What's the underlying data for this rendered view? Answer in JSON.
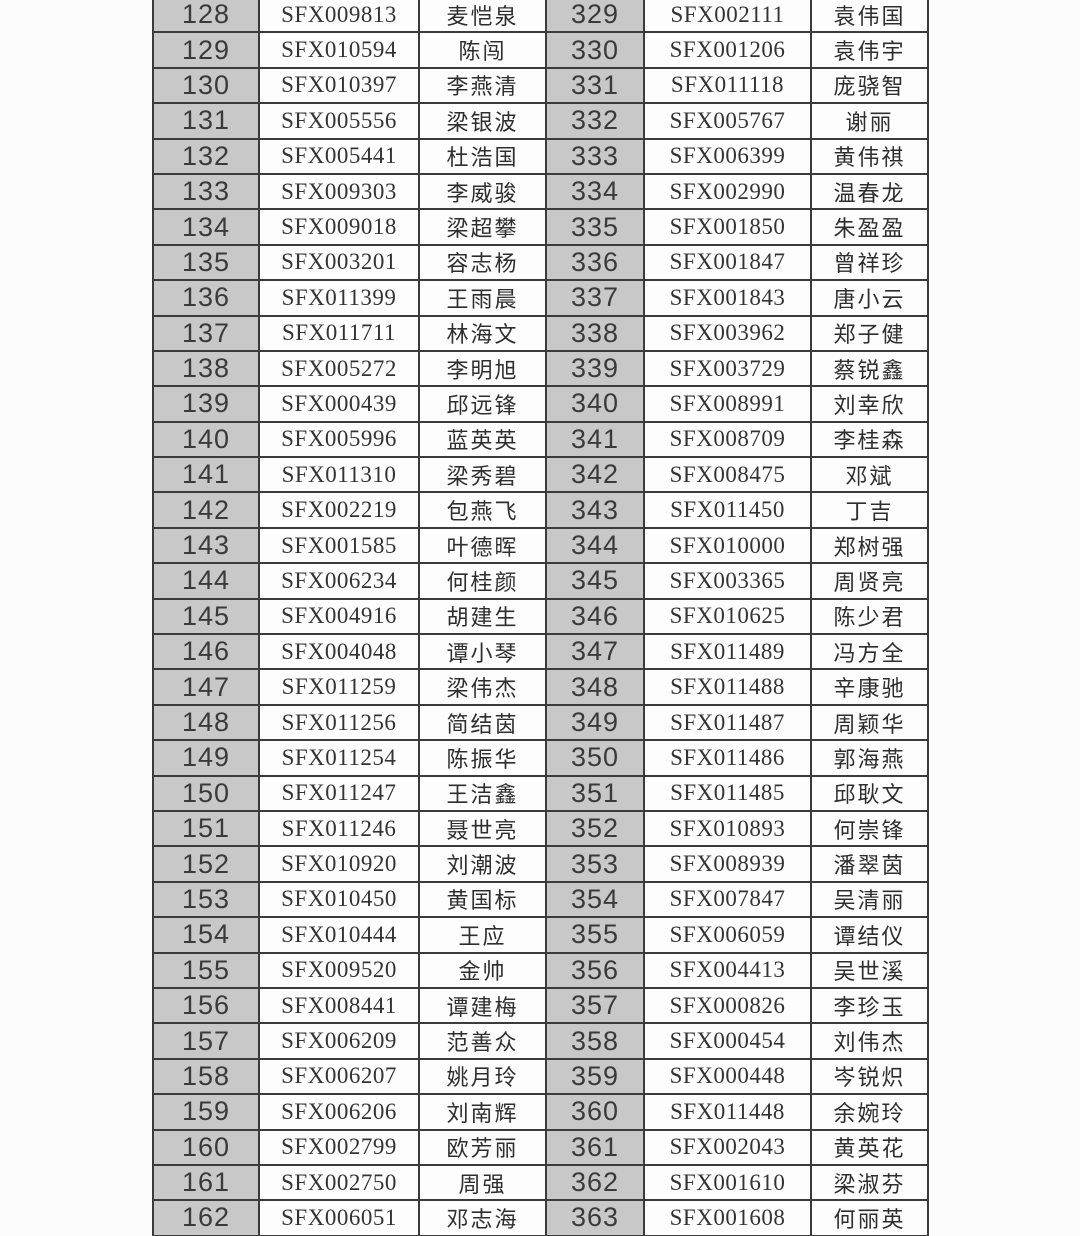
{
  "colors": {
    "page_bg": "#fcfcfc",
    "row_number_bg": "#c8c8c8",
    "cell_bg": "#fdfdfd",
    "border": "#3b3b3b",
    "text": "#333333"
  },
  "table": {
    "left_rows": [
      {
        "no": "128",
        "code": "SFX009813",
        "name": "麦恺泉"
      },
      {
        "no": "129",
        "code": "SFX010594",
        "name": "陈闯"
      },
      {
        "no": "130",
        "code": "SFX010397",
        "name": "李燕清"
      },
      {
        "no": "131",
        "code": "SFX005556",
        "name": "梁银波"
      },
      {
        "no": "132",
        "code": "SFX005441",
        "name": "杜浩国"
      },
      {
        "no": "133",
        "code": "SFX009303",
        "name": "李威骏"
      },
      {
        "no": "134",
        "code": "SFX009018",
        "name": "梁超攀"
      },
      {
        "no": "135",
        "code": "SFX003201",
        "name": "容志杨"
      },
      {
        "no": "136",
        "code": "SFX011399",
        "name": "王雨晨"
      },
      {
        "no": "137",
        "code": "SFX011711",
        "name": "林海文"
      },
      {
        "no": "138",
        "code": "SFX005272",
        "name": "李明旭"
      },
      {
        "no": "139",
        "code": "SFX000439",
        "name": "邱远锋"
      },
      {
        "no": "140",
        "code": "SFX005996",
        "name": "蓝英英"
      },
      {
        "no": "141",
        "code": "SFX011310",
        "name": "梁秀碧"
      },
      {
        "no": "142",
        "code": "SFX002219",
        "name": "包燕飞"
      },
      {
        "no": "143",
        "code": "SFX001585",
        "name": "叶德晖"
      },
      {
        "no": "144",
        "code": "SFX006234",
        "name": "何桂颜"
      },
      {
        "no": "145",
        "code": "SFX004916",
        "name": "胡建生"
      },
      {
        "no": "146",
        "code": "SFX004048",
        "name": "谭小琴"
      },
      {
        "no": "147",
        "code": "SFX011259",
        "name": "梁伟杰"
      },
      {
        "no": "148",
        "code": "SFX011256",
        "name": "简结茵"
      },
      {
        "no": "149",
        "code": "SFX011254",
        "name": "陈振华"
      },
      {
        "no": "150",
        "code": "SFX011247",
        "name": "王洁鑫"
      },
      {
        "no": "151",
        "code": "SFX011246",
        "name": "聂世亮"
      },
      {
        "no": "152",
        "code": "SFX010920",
        "name": "刘潮波"
      },
      {
        "no": "153",
        "code": "SFX010450",
        "name": "黄国标"
      },
      {
        "no": "154",
        "code": "SFX010444",
        "name": "王应"
      },
      {
        "no": "155",
        "code": "SFX009520",
        "name": "金帅"
      },
      {
        "no": "156",
        "code": "SFX008441",
        "name": "谭建梅"
      },
      {
        "no": "157",
        "code": "SFX006209",
        "name": "范善众"
      },
      {
        "no": "158",
        "code": "SFX006207",
        "name": "姚月玲"
      },
      {
        "no": "159",
        "code": "SFX006206",
        "name": "刘南辉"
      },
      {
        "no": "160",
        "code": "SFX002799",
        "name": "欧芳丽"
      },
      {
        "no": "161",
        "code": "SFX002750",
        "name": "周强"
      },
      {
        "no": "162",
        "code": "SFX006051",
        "name": "邓志海"
      }
    ],
    "right_rows": [
      {
        "no": "329",
        "code": "SFX002111",
        "name": "袁伟国"
      },
      {
        "no": "330",
        "code": "SFX001206",
        "name": "袁伟宇"
      },
      {
        "no": "331",
        "code": "SFX011118",
        "name": "庞骁智"
      },
      {
        "no": "332",
        "code": "SFX005767",
        "name": "谢丽"
      },
      {
        "no": "333",
        "code": "SFX006399",
        "name": "黄伟祺"
      },
      {
        "no": "334",
        "code": "SFX002990",
        "name": "温春龙"
      },
      {
        "no": "335",
        "code": "SFX001850",
        "name": "朱盈盈"
      },
      {
        "no": "336",
        "code": "SFX001847",
        "name": "曾祥珍"
      },
      {
        "no": "337",
        "code": "SFX001843",
        "name": "唐小云"
      },
      {
        "no": "338",
        "code": "SFX003962",
        "name": "郑子健"
      },
      {
        "no": "339",
        "code": "SFX003729",
        "name": "蔡锐鑫"
      },
      {
        "no": "340",
        "code": "SFX008991",
        "name": "刘幸欣"
      },
      {
        "no": "341",
        "code": "SFX008709",
        "name": "李桂森"
      },
      {
        "no": "342",
        "code": "SFX008475",
        "name": "邓斌"
      },
      {
        "no": "343",
        "code": "SFX011450",
        "name": "丁吉"
      },
      {
        "no": "344",
        "code": "SFX010000",
        "name": "郑树强"
      },
      {
        "no": "345",
        "code": "SFX003365",
        "name": "周贤亮"
      },
      {
        "no": "346",
        "code": "SFX010625",
        "name": "陈少君"
      },
      {
        "no": "347",
        "code": "SFX011489",
        "name": "冯方全"
      },
      {
        "no": "348",
        "code": "SFX011488",
        "name": "辛康驰"
      },
      {
        "no": "349",
        "code": "SFX011487",
        "name": "周颖华"
      },
      {
        "no": "350",
        "code": "SFX011486",
        "name": "郭海燕"
      },
      {
        "no": "351",
        "code": "SFX011485",
        "name": "邱耿文"
      },
      {
        "no": "352",
        "code": "SFX010893",
        "name": "何崇锋"
      },
      {
        "no": "353",
        "code": "SFX008939",
        "name": "潘翠茵"
      },
      {
        "no": "354",
        "code": "SFX007847",
        "name": "吴清丽"
      },
      {
        "no": "355",
        "code": "SFX006059",
        "name": "谭结仪"
      },
      {
        "no": "356",
        "code": "SFX004413",
        "name": "吴世溪"
      },
      {
        "no": "357",
        "code": "SFX000826",
        "name": "李珍玉"
      },
      {
        "no": "358",
        "code": "SFX000454",
        "name": "刘伟杰"
      },
      {
        "no": "359",
        "code": "SFX000448",
        "name": "岑锐炽"
      },
      {
        "no": "360",
        "code": "SFX011448",
        "name": "余婉玲"
      },
      {
        "no": "361",
        "code": "SFX002043",
        "name": "黄英花"
      },
      {
        "no": "362",
        "code": "SFX001610",
        "name": "梁淑芬"
      },
      {
        "no": "363",
        "code": "SFX001608",
        "name": "何丽英"
      }
    ]
  }
}
